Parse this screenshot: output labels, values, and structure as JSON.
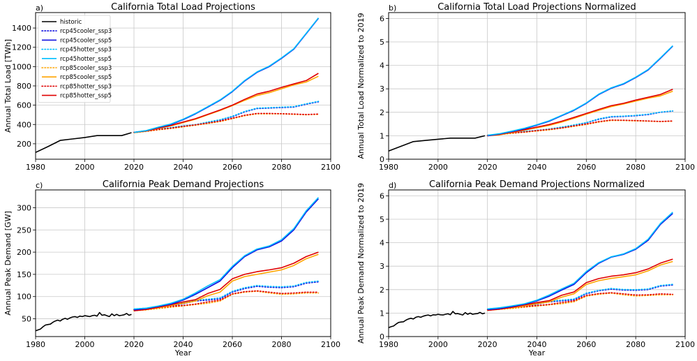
{
  "chart_data": [
    {
      "type": "line",
      "panel_label": "a)",
      "title": "California Total Load Projections",
      "xlabel": "",
      "ylabel": "Annual Total Load [TWh]",
      "xlim": [
        1980,
        2100
      ],
      "ylim": [
        40,
        1560
      ],
      "xticks": [
        1980,
        2000,
        2020,
        2040,
        2060,
        2080,
        2100
      ],
      "yticks": [
        200,
        400,
        600,
        800,
        1000,
        1200,
        1400
      ],
      "grid": true,
      "legend": "upper-left",
      "x": [
        2020,
        2025,
        2030,
        2035,
        2040,
        2045,
        2050,
        2055,
        2060,
        2065,
        2070,
        2075,
        2080,
        2085,
        2090,
        2095
      ],
      "historic": {
        "name": "historic",
        "x": [
          1980,
          1985,
          1990,
          1995,
          2000,
          2005,
          2010,
          2015,
          2019
        ],
        "values": [
          110,
          170,
          235,
          250,
          265,
          285,
          285,
          285,
          315
        ]
      },
      "series": [
        {
          "name": "rcp45cooler_ssp3",
          "values": [
            318,
            330,
            350,
            365,
            380,
            395,
            420,
            445,
            480,
            530,
            565,
            570,
            575,
            580,
            610,
            635
          ]
        },
        {
          "name": "rcp45cooler_ssp5",
          "values": [
            318,
            335,
            370,
            400,
            450,
            510,
            580,
            650,
            740,
            850,
            940,
            1000,
            1085,
            1180,
            1340,
            1500
          ]
        },
        {
          "name": "rcp45hotter_ssp3",
          "values": [
            318,
            332,
            352,
            368,
            385,
            398,
            425,
            450,
            485,
            535,
            570,
            575,
            580,
            585,
            615,
            640
          ]
        },
        {
          "name": "rcp45hotter_ssp5",
          "values": [
            318,
            337,
            373,
            405,
            455,
            515,
            585,
            655,
            745,
            855,
            945,
            1005,
            1090,
            1185,
            1345,
            1505
          ]
        },
        {
          "name": "rcp85cooler_ssp3",
          "values": [
            315,
            328,
            345,
            358,
            375,
            392,
            410,
            430,
            460,
            490,
            510,
            510,
            510,
            505,
            500,
            505
          ]
        },
        {
          "name": "rcp85cooler_ssp5",
          "values": [
            315,
            330,
            360,
            385,
            420,
            455,
            500,
            545,
            595,
            650,
            700,
            730,
            770,
            810,
            840,
            900
          ]
        },
        {
          "name": "rcp85hotter_ssp3",
          "values": [
            318,
            330,
            348,
            362,
            380,
            396,
            415,
            435,
            465,
            495,
            515,
            515,
            512,
            508,
            503,
            508
          ]
        },
        {
          "name": "rcp85hotter_ssp5",
          "values": [
            318,
            333,
            363,
            390,
            425,
            460,
            505,
            550,
            600,
            660,
            715,
            745,
            785,
            820,
            855,
            930
          ]
        }
      ]
    },
    {
      "type": "line",
      "panel_label": "b)",
      "title": "California Total Load Projections Normalized",
      "xlabel": "",
      "ylabel": "Annual Total Load Normalized to 2019",
      "xlim": [
        1980,
        2100
      ],
      "ylim": [
        0,
        6.25
      ],
      "xticks": [
        1980,
        2000,
        2020,
        2040,
        2060,
        2080,
        2100
      ],
      "yticks": [
        0,
        1,
        2,
        3,
        4,
        5,
        6
      ],
      "grid": true,
      "legend": "none",
      "x": [
        2020,
        2025,
        2030,
        2035,
        2040,
        2045,
        2050,
        2055,
        2060,
        2065,
        2070,
        2075,
        2080,
        2085,
        2090,
        2095
      ],
      "historic": {
        "name": "historic",
        "x": [
          1980,
          1985,
          1990,
          1995,
          2000,
          2005,
          2010,
          2015,
          2019
        ],
        "values": [
          0.35,
          0.55,
          0.75,
          0.8,
          0.85,
          0.9,
          0.9,
          0.9,
          1.0
        ]
      },
      "series": [
        {
          "name": "rcp45cooler_ssp3",
          "values": [
            1.0,
            1.05,
            1.12,
            1.18,
            1.22,
            1.28,
            1.35,
            1.45,
            1.55,
            1.7,
            1.8,
            1.82,
            1.85,
            1.9,
            2.0,
            2.05
          ]
        },
        {
          "name": "rcp45cooler_ssp5",
          "values": [
            1.0,
            1.08,
            1.18,
            1.3,
            1.45,
            1.62,
            1.85,
            2.08,
            2.38,
            2.75,
            3.02,
            3.2,
            3.48,
            3.8,
            4.3,
            4.82
          ]
        },
        {
          "name": "rcp45hotter_ssp3",
          "values": [
            1.02,
            1.06,
            1.13,
            1.19,
            1.23,
            1.29,
            1.37,
            1.46,
            1.56,
            1.72,
            1.82,
            1.84,
            1.87,
            1.92,
            2.01,
            2.06
          ]
        },
        {
          "name": "rcp45hotter_ssp5",
          "values": [
            1.02,
            1.09,
            1.2,
            1.32,
            1.47,
            1.64,
            1.87,
            2.1,
            2.4,
            2.77,
            3.04,
            3.22,
            3.5,
            3.82,
            4.32,
            4.84
          ]
        },
        {
          "name": "rcp85cooler_ssp3",
          "values": [
            1.0,
            1.05,
            1.1,
            1.15,
            1.2,
            1.25,
            1.32,
            1.4,
            1.48,
            1.58,
            1.65,
            1.65,
            1.63,
            1.62,
            1.6,
            1.62
          ]
        },
        {
          "name": "rcp85cooler_ssp5",
          "values": [
            1.0,
            1.04,
            1.14,
            1.24,
            1.34,
            1.44,
            1.58,
            1.74,
            1.92,
            2.08,
            2.24,
            2.35,
            2.48,
            2.6,
            2.7,
            2.9
          ]
        },
        {
          "name": "rcp85hotter_ssp3",
          "values": [
            1.02,
            1.06,
            1.12,
            1.16,
            1.22,
            1.27,
            1.33,
            1.42,
            1.5,
            1.6,
            1.67,
            1.66,
            1.65,
            1.63,
            1.61,
            1.63
          ]
        },
        {
          "name": "rcp85hotter_ssp5",
          "values": [
            1.0,
            1.06,
            1.16,
            1.26,
            1.37,
            1.48,
            1.62,
            1.78,
            1.95,
            2.12,
            2.28,
            2.38,
            2.52,
            2.64,
            2.76,
            2.98
          ]
        }
      ]
    },
    {
      "type": "line",
      "panel_label": "c)",
      "title": "California Peak Demand Projections",
      "xlabel": "Year",
      "ylabel": "Annual Peak Demand [GW]",
      "xlim": [
        1980,
        2100
      ],
      "ylim": [
        10,
        340
      ],
      "xticks": [
        1980,
        2000,
        2020,
        2040,
        2060,
        2080,
        2100
      ],
      "yticks": [
        50,
        100,
        150,
        200,
        250,
        300
      ],
      "grid": true,
      "legend": "none",
      "x": [
        2020,
        2025,
        2030,
        2035,
        2040,
        2045,
        2050,
        2055,
        2060,
        2065,
        2070,
        2075,
        2080,
        2085,
        2090,
        2095
      ],
      "historic": {
        "name": "historic",
        "x": [
          1980,
          1981,
          1982,
          1983,
          1984,
          1985,
          1986,
          1987,
          1988,
          1989,
          1990,
          1991,
          1992,
          1993,
          1994,
          1995,
          1996,
          1997,
          1998,
          1999,
          2000,
          2001,
          2002,
          2003,
          2004,
          2005,
          2006,
          2007,
          2008,
          2009,
          2010,
          2011,
          2012,
          2013,
          2014,
          2015,
          2016,
          2017,
          2018,
          2019
        ],
        "values": [
          23,
          25,
          27,
          32,
          36,
          37,
          38,
          42,
          45,
          47,
          45,
          49,
          51,
          49,
          52,
          54,
          55,
          53,
          56,
          55,
          57,
          56,
          55,
          57,
          58,
          56,
          64,
          58,
          59,
          57,
          55,
          61,
          57,
          60,
          57,
          58,
          59,
          62,
          58,
          60
        ]
      },
      "series": [
        {
          "name": "rcp45cooler_ssp3",
          "values": [
            70,
            72,
            75,
            79,
            84,
            90,
            92,
            95,
            110,
            118,
            123,
            121,
            120,
            122,
            130,
            133
          ]
        },
        {
          "name": "rcp45cooler_ssp5",
          "values": [
            70,
            73,
            78,
            83,
            92,
            105,
            120,
            135,
            165,
            190,
            205,
            212,
            225,
            250,
            290,
            320
          ]
        },
        {
          "name": "rcp45hotter_ssp3",
          "values": [
            72,
            74,
            76,
            81,
            86,
            92,
            94,
            97,
            112,
            120,
            125,
            123,
            122,
            124,
            132,
            135
          ]
        },
        {
          "name": "rcp45hotter_ssp5",
          "values": [
            72,
            74,
            79,
            85,
            94,
            108,
            124,
            138,
            168,
            192,
            207,
            214,
            228,
            253,
            293,
            323
          ]
        },
        {
          "name": "rcp85cooler_ssp3",
          "values": [
            68,
            70,
            73,
            76,
            79,
            82,
            85,
            90,
            105,
            110,
            112,
            108,
            105,
            106,
            108,
            108
          ]
        },
        {
          "name": "rcp85cooler_ssp5",
          "values": [
            68,
            71,
            75,
            80,
            85,
            90,
            102,
            110,
            135,
            145,
            150,
            155,
            160,
            170,
            185,
            195
          ]
        },
        {
          "name": "rcp85hotter_ssp3",
          "values": [
            70,
            72,
            75,
            78,
            80,
            83,
            88,
            92,
            106,
            111,
            113,
            110,
            107,
            108,
            110,
            110
          ]
        },
        {
          "name": "rcp85hotter_ssp5",
          "values": [
            68,
            71,
            76,
            82,
            88,
            93,
            107,
            116,
            140,
            150,
            156,
            160,
            165,
            175,
            190,
            200
          ]
        }
      ]
    },
    {
      "type": "line",
      "panel_label": "d)",
      "title": "California Peak Demand Projections Normalized",
      "xlabel": "Year",
      "ylabel": "Annual Peak Demand Normalized to 2019",
      "xlim": [
        1980,
        2100
      ],
      "ylim": [
        0,
        6.25
      ],
      "xticks": [
        1980,
        2000,
        2020,
        2040,
        2060,
        2080,
        2100
      ],
      "yticks": [
        0,
        1,
        2,
        3,
        4,
        5,
        6
      ],
      "grid": true,
      "legend": "none",
      "x": [
        2020,
        2025,
        2030,
        2035,
        2040,
        2045,
        2050,
        2055,
        2060,
        2065,
        2070,
        2075,
        2080,
        2085,
        2090,
        2095
      ],
      "historic": {
        "name": "historic",
        "x": [
          1980,
          1981,
          1982,
          1983,
          1984,
          1985,
          1986,
          1987,
          1988,
          1989,
          1990,
          1991,
          1992,
          1993,
          1994,
          1995,
          1996,
          1997,
          1998,
          1999,
          2000,
          2001,
          2002,
          2003,
          2004,
          2005,
          2006,
          2007,
          2008,
          2009,
          2010,
          2011,
          2012,
          2013,
          2014,
          2015,
          2016,
          2017,
          2018,
          2019
        ],
        "values": [
          0.38,
          0.42,
          0.45,
          0.53,
          0.6,
          0.62,
          0.63,
          0.7,
          0.75,
          0.78,
          0.75,
          0.82,
          0.85,
          0.82,
          0.87,
          0.9,
          0.92,
          0.88,
          0.93,
          0.92,
          0.95,
          0.93,
          0.92,
          0.95,
          0.97,
          0.93,
          1.07,
          0.97,
          0.98,
          0.95,
          0.92,
          1.02,
          0.95,
          1.0,
          0.95,
          0.97,
          0.98,
          1.03,
          0.97,
          1.0
        ]
      },
      "series": [
        {
          "name": "rcp45cooler_ssp3",
          "values": [
            1.15,
            1.2,
            1.25,
            1.3,
            1.38,
            1.48,
            1.52,
            1.57,
            1.82,
            1.95,
            2.02,
            1.98,
            1.97,
            2.0,
            2.15,
            2.2
          ]
        },
        {
          "name": "rcp45cooler_ssp5",
          "values": [
            1.15,
            1.2,
            1.28,
            1.38,
            1.52,
            1.72,
            1.98,
            2.22,
            2.72,
            3.12,
            3.38,
            3.5,
            3.72,
            4.1,
            4.78,
            5.25
          ]
        },
        {
          "name": "rcp45hotter_ssp3",
          "values": [
            1.18,
            1.22,
            1.27,
            1.33,
            1.41,
            1.51,
            1.55,
            1.6,
            1.85,
            1.97,
            2.05,
            2.01,
            2.0,
            2.03,
            2.18,
            2.23
          ]
        },
        {
          "name": "rcp45hotter_ssp5",
          "values": [
            1.18,
            1.23,
            1.31,
            1.4,
            1.55,
            1.77,
            2.03,
            2.27,
            2.77,
            3.15,
            3.4,
            3.52,
            3.75,
            4.15,
            4.82,
            5.3
          ]
        },
        {
          "name": "rcp85cooler_ssp3",
          "values": [
            1.12,
            1.16,
            1.2,
            1.25,
            1.3,
            1.35,
            1.4,
            1.48,
            1.72,
            1.8,
            1.85,
            1.78,
            1.73,
            1.75,
            1.78,
            1.78
          ]
        },
        {
          "name": "rcp85cooler_ssp5",
          "values": [
            1.12,
            1.17,
            1.23,
            1.31,
            1.4,
            1.48,
            1.68,
            1.82,
            2.22,
            2.38,
            2.48,
            2.55,
            2.63,
            2.8,
            3.05,
            3.2
          ]
        },
        {
          "name": "rcp85hotter_ssp3",
          "values": [
            1.15,
            1.18,
            1.23,
            1.28,
            1.32,
            1.37,
            1.45,
            1.52,
            1.75,
            1.83,
            1.87,
            1.82,
            1.77,
            1.78,
            1.82,
            1.8
          ]
        },
        {
          "name": "rcp85hotter_ssp5",
          "values": [
            1.12,
            1.17,
            1.25,
            1.35,
            1.45,
            1.53,
            1.76,
            1.9,
            2.3,
            2.47,
            2.57,
            2.63,
            2.72,
            2.88,
            3.13,
            3.3
          ]
        }
      ]
    }
  ],
  "legend": [
    {
      "name": "historic",
      "color": "#000000",
      "dash": "solid"
    },
    {
      "name": "rcp45cooler_ssp3",
      "color": "#1010e0",
      "dash": "dotted"
    },
    {
      "name": "rcp45cooler_ssp5",
      "color": "#1010e0",
      "dash": "solid"
    },
    {
      "name": "rcp45hotter_ssp3",
      "color": "#00bfff",
      "dash": "dotted"
    },
    {
      "name": "rcp45hotter_ssp5",
      "color": "#00bfff",
      "dash": "solid"
    },
    {
      "name": "rcp85cooler_ssp3",
      "color": "#ffa500",
      "dash": "dotted"
    },
    {
      "name": "rcp85cooler_ssp5",
      "color": "#ffa500",
      "dash": "solid"
    },
    {
      "name": "rcp85hotter_ssp3",
      "color": "#e00000",
      "dash": "dotted"
    },
    {
      "name": "rcp85hotter_ssp5",
      "color": "#e00000",
      "dash": "solid"
    }
  ]
}
